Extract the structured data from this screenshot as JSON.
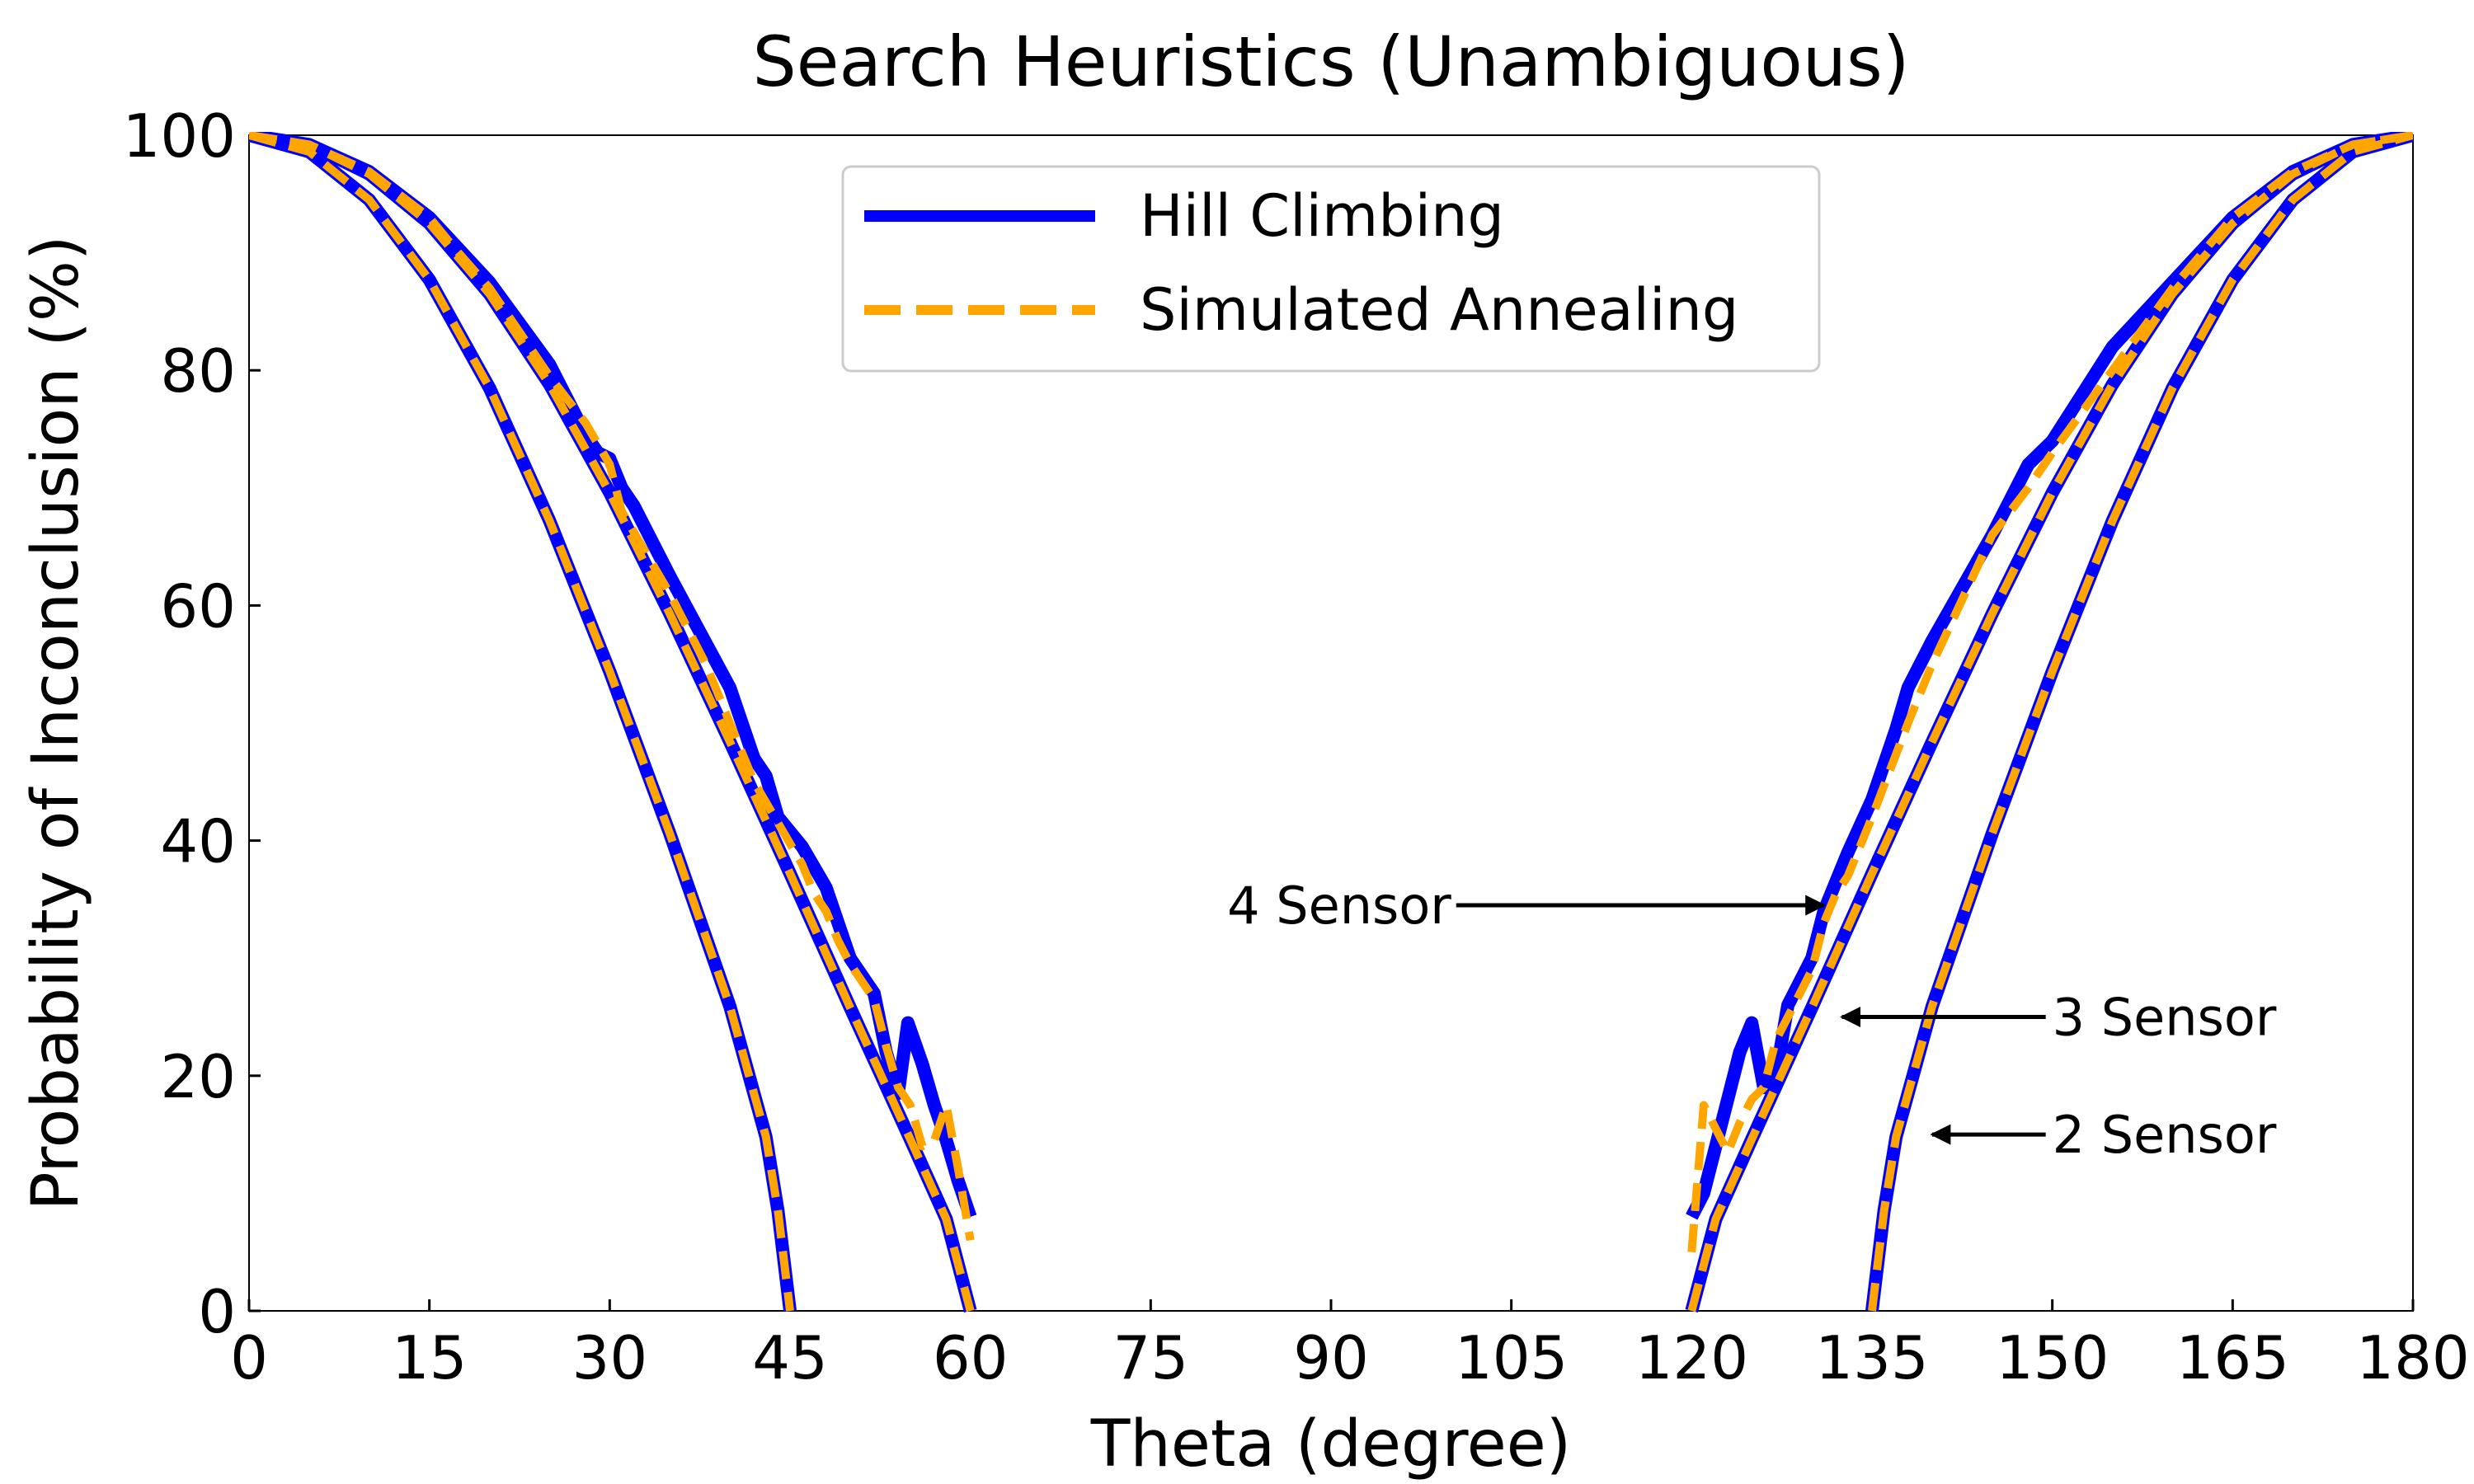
{
  "chart_data": {
    "type": "line",
    "title": "Search Heuristics (Unambiguous)",
    "xlabel": "Theta (degree)",
    "ylabel": "Probability of Inconclusion (%)",
    "xlim": [
      0,
      180
    ],
    "ylim": [
      0,
      100
    ],
    "xticks": [
      0,
      15,
      30,
      45,
      60,
      75,
      90,
      105,
      120,
      135,
      150,
      165,
      180
    ],
    "yticks": [
      0,
      20,
      40,
      60,
      80,
      100
    ],
    "grid": false,
    "legend": {
      "placement": "upper-center",
      "entries": [
        "Hill Climbing",
        "Simulated Annealing"
      ]
    },
    "colors": {
      "hill_climbing": "#0000ff",
      "simulated_annealing": "#ffa500"
    },
    "series": [
      {
        "name": "Hill Climbing",
        "style": "solid",
        "curves": [
          {
            "label": "2 Sensor",
            "points": [
              [
                0,
                100
              ],
              [
                5,
                98.6
              ],
              [
                10,
                94.5
              ],
              [
                15,
                87.7
              ],
              [
                20,
                78.5
              ],
              [
                25,
                67.2
              ],
              [
                30,
                54.4
              ],
              [
                35,
                40.6
              ],
              [
                40,
                25.9
              ],
              [
                43,
                14.8
              ],
              [
                44,
                8.5
              ],
              [
                45,
                0
              ]
            ]
          },
          {
            "label": "3 Sensor",
            "points": [
              [
                0,
                100
              ],
              [
                5,
                99.2
              ],
              [
                10,
                96.7
              ],
              [
                15,
                92.5
              ],
              [
                20,
                86.5
              ],
              [
                25,
                78.8
              ],
              [
                30,
                69.6
              ],
              [
                35,
                59.3
              ],
              [
                40,
                48.4
              ],
              [
                45,
                37.2
              ],
              [
                50,
                25.8
              ],
              [
                55,
                14.6
              ],
              [
                58,
                7.8
              ],
              [
                60,
                0
              ]
            ]
          },
          {
            "label": "4 Sensor",
            "points": [
              [
                0,
                100
              ],
              [
                5,
                99.2
              ],
              [
                10,
                96.9
              ],
              [
                15,
                93.0
              ],
              [
                20,
                87.5
              ],
              [
                25,
                80.5
              ],
              [
                28,
                74.5
              ],
              [
                29,
                73.0
              ],
              [
                30,
                72.5
              ],
              [
                31,
                70.0
              ],
              [
                32,
                68.5
              ],
              [
                35,
                62.5
              ],
              [
                40,
                53.0
              ],
              [
                41,
                50.0
              ],
              [
                42,
                47.0
              ],
              [
                43,
                45.5
              ],
              [
                44,
                42.0
              ],
              [
                46,
                39.5
              ],
              [
                48,
                36.0
              ],
              [
                50,
                30.0
              ],
              [
                52,
                27.0
              ],
              [
                53,
                22.0
              ],
              [
                54,
                18.5
              ],
              [
                54.8,
                24.5
              ],
              [
                56,
                21.0
              ],
              [
                57,
                17.5
              ],
              [
                58,
                14.5
              ],
              [
                59,
                11.0
              ],
              [
                60,
                8.0
              ]
            ]
          },
          {
            "label": "4 Sensor",
            "points": [
              [
                120,
                8.0
              ],
              [
                121,
                10.0
              ],
              [
                122,
                14.0
              ],
              [
                123,
                18.0
              ],
              [
                124,
                22.0
              ],
              [
                125,
                24.5
              ],
              [
                126,
                19.0
              ],
              [
                127,
                20.0
              ],
              [
                128,
                26.0
              ],
              [
                130,
                30.0
              ],
              [
                131,
                34.0
              ],
              [
                133,
                39.0
              ],
              [
                135,
                43.5
              ],
              [
                136,
                46.5
              ],
              [
                137,
                49.5
              ],
              [
                138,
                53.0
              ],
              [
                140,
                57.0
              ],
              [
                145,
                66.0
              ],
              [
                148,
                72.0
              ],
              [
                150,
                74.0
              ],
              [
                155,
                82.0
              ],
              [
                160,
                87.5
              ],
              [
                165,
                93.0
              ],
              [
                170,
                96.9
              ],
              [
                175,
                99.2
              ],
              [
                180,
                100
              ]
            ]
          },
          {
            "label": "3 Sensor",
            "points": [
              [
                120,
                0
              ],
              [
                122,
                7.8
              ],
              [
                125,
                14.6
              ],
              [
                130,
                25.8
              ],
              [
                135,
                37.2
              ],
              [
                140,
                48.4
              ],
              [
                145,
                59.3
              ],
              [
                150,
                69.6
              ],
              [
                155,
                78.8
              ],
              [
                160,
                86.5
              ],
              [
                165,
                92.5
              ],
              [
                170,
                96.7
              ],
              [
                175,
                99.2
              ],
              [
                180,
                100
              ]
            ]
          },
          {
            "label": "2 Sensor",
            "points": [
              [
                135,
                0
              ],
              [
                136,
                8.5
              ],
              [
                137,
                14.8
              ],
              [
                140,
                25.9
              ],
              [
                145,
                40.6
              ],
              [
                150,
                54.4
              ],
              [
                155,
                67.2
              ],
              [
                160,
                78.5
              ],
              [
                165,
                87.7
              ],
              [
                170,
                94.5
              ],
              [
                175,
                98.6
              ],
              [
                180,
                100
              ]
            ]
          }
        ]
      },
      {
        "name": "Simulated Annealing",
        "style": "dashed",
        "curves": [
          {
            "label": "2 Sensor",
            "points": [
              [
                0,
                100
              ],
              [
                5,
                98.6
              ],
              [
                10,
                94.5
              ],
              [
                15,
                87.7
              ],
              [
                20,
                78.5
              ],
              [
                25,
                67.2
              ],
              [
                30,
                54.4
              ],
              [
                35,
                40.6
              ],
              [
                40,
                25.9
              ],
              [
                43,
                14.8
              ],
              [
                44,
                8.5
              ],
              [
                45,
                0
              ]
            ]
          },
          {
            "label": "3 Sensor",
            "points": [
              [
                0,
                100
              ],
              [
                5,
                99.2
              ],
              [
                10,
                96.7
              ],
              [
                15,
                92.5
              ],
              [
                20,
                86.5
              ],
              [
                25,
                78.8
              ],
              [
                30,
                69.6
              ],
              [
                35,
                59.3
              ],
              [
                40,
                48.4
              ],
              [
                45,
                37.2
              ],
              [
                50,
                25.8
              ],
              [
                55,
                14.6
              ],
              [
                58,
                7.8
              ],
              [
                60,
                0
              ]
            ]
          },
          {
            "label": "4 Sensor",
            "points": [
              [
                0,
                100
              ],
              [
                5,
                99.2
              ],
              [
                10,
                96.9
              ],
              [
                15,
                93.0
              ],
              [
                17,
                90.5
              ],
              [
                20,
                87.0
              ],
              [
                25,
                79.5
              ],
              [
                28,
                75.5
              ],
              [
                30,
                72.0
              ],
              [
                31,
                68.0
              ],
              [
                35,
                61.0
              ],
              [
                38,
                55.0
              ],
              [
                40,
                50.0
              ],
              [
                42,
                45.0
              ],
              [
                44,
                41.5
              ],
              [
                46,
                38.0
              ],
              [
                47,
                35.5
              ],
              [
                48,
                34.0
              ],
              [
                49,
                31.5
              ],
              [
                50,
                29.5
              ],
              [
                52,
                26.5
              ],
              [
                53,
                22.5
              ],
              [
                54,
                19.0
              ],
              [
                55,
                17.5
              ],
              [
                56,
                14.0
              ],
              [
                57,
                14.5
              ],
              [
                58,
                17.5
              ],
              [
                59,
                12.0
              ],
              [
                60,
                6.0
              ]
            ]
          },
          {
            "label": "4 Sensor",
            "points": [
              [
                120,
                5.0
              ],
              [
                121,
                17.5
              ],
              [
                122,
                15.5
              ],
              [
                123,
                13.5
              ],
              [
                124,
                16.0
              ],
              [
                125,
                18.0
              ],
              [
                126,
                19.0
              ],
              [
                127,
                23.0
              ],
              [
                128,
                25.0
              ],
              [
                130,
                29.0
              ],
              [
                131,
                33.0
              ],
              [
                132,
                35.5
              ],
              [
                133,
                37.0
              ],
              [
                135,
                42.0
              ],
              [
                138,
                50.0
              ],
              [
                140,
                55.0
              ],
              [
                145,
                66.0
              ],
              [
                148,
                70.0
              ],
              [
                150,
                73.0
              ],
              [
                155,
                80.0
              ],
              [
                160,
                87.0
              ],
              [
                165,
                93.0
              ],
              [
                170,
                96.9
              ],
              [
                175,
                99.2
              ],
              [
                180,
                100
              ]
            ]
          },
          {
            "label": "3 Sensor",
            "points": [
              [
                120,
                0
              ],
              [
                122,
                7.8
              ],
              [
                125,
                14.6
              ],
              [
                130,
                25.8
              ],
              [
                135,
                37.2
              ],
              [
                140,
                48.4
              ],
              [
                145,
                59.3
              ],
              [
                150,
                69.6
              ],
              [
                155,
                78.8
              ],
              [
                160,
                86.5
              ],
              [
                165,
                92.5
              ],
              [
                170,
                96.7
              ],
              [
                175,
                99.2
              ],
              [
                180,
                100
              ]
            ]
          },
          {
            "label": "2 Sensor",
            "points": [
              [
                135,
                0
              ],
              [
                136,
                8.5
              ],
              [
                137,
                14.8
              ],
              [
                140,
                25.9
              ],
              [
                145,
                40.6
              ],
              [
                150,
                54.4
              ],
              [
                155,
                67.2
              ],
              [
                160,
                78.5
              ],
              [
                165,
                87.7
              ],
              [
                170,
                94.5
              ],
              [
                175,
                98.6
              ],
              [
                180,
                100
              ]
            ]
          }
        ]
      }
    ],
    "annotations": [
      {
        "text": "4 Sensor",
        "xy": [
          131,
          34.5
        ],
        "text_xy": [
          100,
          34.5
        ]
      },
      {
        "text": "3 Sensor",
        "xy": [
          132.5,
          25
        ],
        "text_xy": [
          150,
          25
        ]
      },
      {
        "text": "2 Sensor",
        "xy": [
          140,
          15
        ],
        "text_xy": [
          150,
          15
        ]
      }
    ]
  }
}
